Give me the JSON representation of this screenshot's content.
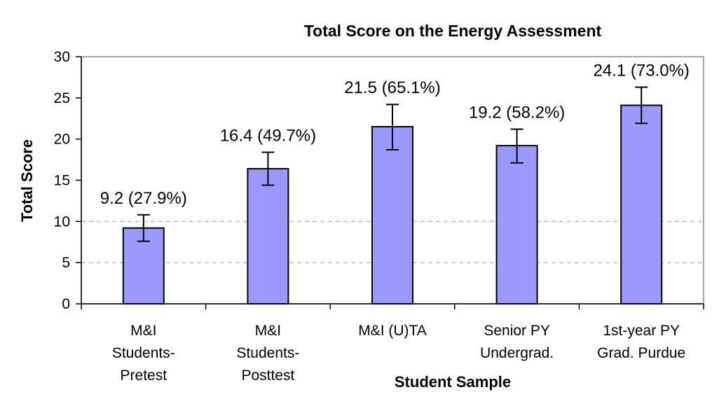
{
  "chart_data": {
    "type": "bar",
    "title": "Total Score on the Energy Assessment",
    "xlabel": "Student Sample",
    "ylabel": "Total Score",
    "ylim": [
      0,
      30
    ],
    "yticks": [
      0,
      5,
      10,
      15,
      20,
      25,
      30
    ],
    "grid": "horizontal dashed at 5 and 10",
    "legend": "none",
    "categories": [
      [
        "M&I",
        "Students-",
        "Pretest"
      ],
      [
        "M&I",
        "Students-",
        "Posttest"
      ],
      [
        "M&I (U)TA"
      ],
      [
        "Senior PY",
        "Undergrad."
      ],
      [
        "1st-year PY",
        "Grad. Purdue"
      ]
    ],
    "values": [
      9.2,
      16.4,
      21.5,
      19.2,
      24.1
    ],
    "error_low": [
      7.6,
      14.4,
      18.7,
      17.1,
      21.9
    ],
    "error_high": [
      10.8,
      18.4,
      24.2,
      21.2,
      26.3
    ],
    "data_labels": [
      "9.2 (27.9%)",
      "16.4 (49.7%)",
      "21.5 (65.1%)",
      "19.2 (58.2%)",
      "24.1 (73.0%)"
    ],
    "bar_color": "#9999ff",
    "bar_edge_color": "#000000"
  }
}
